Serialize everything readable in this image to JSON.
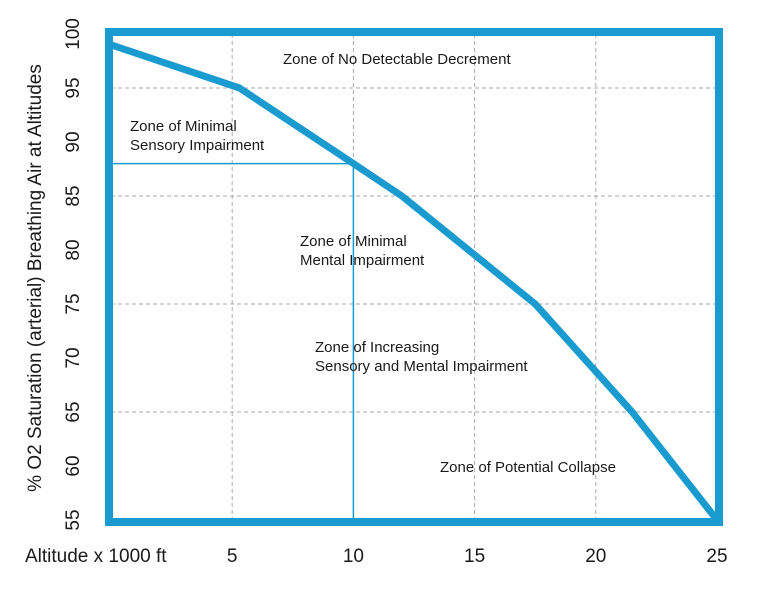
{
  "chart_data": {
    "type": "line",
    "y_label": "% O2 Saturation (arterial) Breathing Air at Altitudes",
    "x_label": "Altitude x 1000 ft",
    "x": [
      0,
      5.3,
      10,
      12,
      17.5,
      21.5,
      25
    ],
    "series": [
      {
        "color": "#1a9bd0",
        "values": [
          99,
          95,
          88,
          85,
          75,
          65,
          55
        ]
      }
    ],
    "reference": {
      "x": 10,
      "y": 88
    },
    "xlim": [
      0,
      25
    ],
    "xticks": [
      5,
      10,
      15,
      20,
      25
    ],
    "ylim": [
      55,
      100
    ],
    "yticks": [
      55,
      60,
      65,
      70,
      75,
      80,
      85,
      90,
      95,
      100
    ],
    "xgrid": [
      5,
      10,
      15,
      20
    ],
    "ygrid": [
      65,
      75,
      85,
      95
    ],
    "grid": true,
    "annotations": [
      [
        "Zone of No Detectable Decrement"
      ],
      [
        "Zone of Minimal",
        "Sensory Impairment"
      ],
      [
        "Zone of Minimal",
        "Mental Impairment"
      ],
      [
        "Zone of Increasing",
        "Sensory and Mental Impairment"
      ],
      [
        "Zone of Potential Collapse"
      ]
    ]
  }
}
